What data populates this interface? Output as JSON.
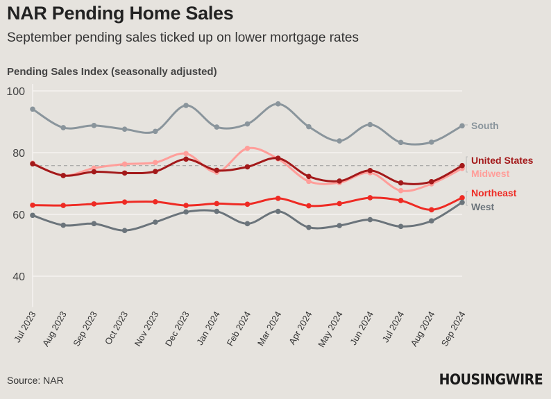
{
  "title": "NAR Pending Home Sales",
  "subtitle": "September pending sales ticked up on lower mortgage rates",
  "source": "Source: NAR",
  "logo": "HOUSINGWIRE",
  "chart_data": {
    "type": "line",
    "ylabel": "Pending Sales Index (seasonally adjusted)",
    "ylim": [
      30,
      100
    ],
    "yticks": [
      40,
      60,
      80,
      100
    ],
    "grid": true,
    "legend": "right, labels at line ends",
    "categories": [
      "Jul 2023",
      "Aug 2023",
      "Sep 2023",
      "Oct 2023",
      "Nov 2023",
      "Dec 2023",
      "Jan 2024",
      "Feb 2024",
      "Mar 2024",
      "Apr 2024",
      "May 2024",
      "Jun 2024",
      "Jul 2024",
      "Aug 2024",
      "Sep 2024"
    ],
    "reference_line": {
      "value": 75.8,
      "style": "dashed"
    },
    "series": [
      {
        "name": "South",
        "color": "#8a959c",
        "values": [
          94.1,
          88.1,
          88.8,
          87.6,
          86.9,
          95.3,
          88.3,
          89.3,
          95.8,
          88.4,
          83.8,
          89.1,
          83.3,
          83.4,
          88.7
        ]
      },
      {
        "name": "Midwest",
        "color": "#ff9e9a",
        "values": [
          76.6,
          72.6,
          75.0,
          76.3,
          76.8,
          79.7,
          73.7,
          81.4,
          78.0,
          70.7,
          70.3,
          73.5,
          67.7,
          69.9,
          74.9
        ]
      },
      {
        "name": "United States",
        "color": "#a3191a",
        "values": [
          76.4,
          72.6,
          73.8,
          73.4,
          73.9,
          77.9,
          74.3,
          75.4,
          78.2,
          72.3,
          70.8,
          74.2,
          70.2,
          70.6,
          75.8
        ]
      },
      {
        "name": "Northeast",
        "color": "#ee2b24",
        "values": [
          63.0,
          62.9,
          63.4,
          64.0,
          64.1,
          62.9,
          63.5,
          63.3,
          65.2,
          62.8,
          63.5,
          65.4,
          64.5,
          61.5,
          65.4
        ]
      },
      {
        "name": "West",
        "color": "#6b747b",
        "values": [
          59.7,
          56.5,
          57.0,
          54.8,
          57.5,
          60.8,
          61.0,
          57.0,
          61.0,
          55.8,
          56.4,
          58.3,
          56.1,
          57.9,
          63.9
        ]
      }
    ],
    "labels": [
      {
        "series": "South",
        "text": "South"
      },
      {
        "series": "United States",
        "text": "United States"
      },
      {
        "series": "Midwest",
        "text": "Midwest"
      },
      {
        "series": "Northeast",
        "text": "Northeast"
      },
      {
        "series": "West",
        "text": "West"
      }
    ]
  }
}
